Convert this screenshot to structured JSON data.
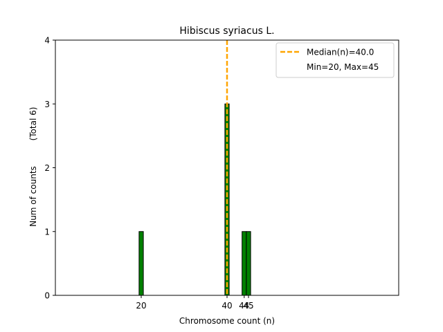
{
  "chart_data": {
    "type": "bar",
    "title": "Hibiscus syriacus L.",
    "xlabel": "Chromosome count (n)",
    "ylabel": "Num of counts",
    "ylabel_total": "(Total 6)",
    "xlim": [
      0,
      80
    ],
    "ylim": [
      0,
      4
    ],
    "xticks": [
      20,
      40,
      44,
      45
    ],
    "yticks": [
      0,
      1,
      2,
      3,
      4
    ],
    "bars": [
      {
        "x": 20,
        "count": 1
      },
      {
        "x": 40,
        "count": 3
      },
      {
        "x": 44,
        "count": 1
      },
      {
        "x": 45,
        "count": 1
      }
    ],
    "bar_color": "#008000",
    "median": 40.0,
    "median_color": "#FFA500",
    "legend": {
      "placement": "top-right",
      "entries": [
        "Median(n)=40.0",
        "Min=20, Max=45"
      ]
    },
    "grid": false
  }
}
